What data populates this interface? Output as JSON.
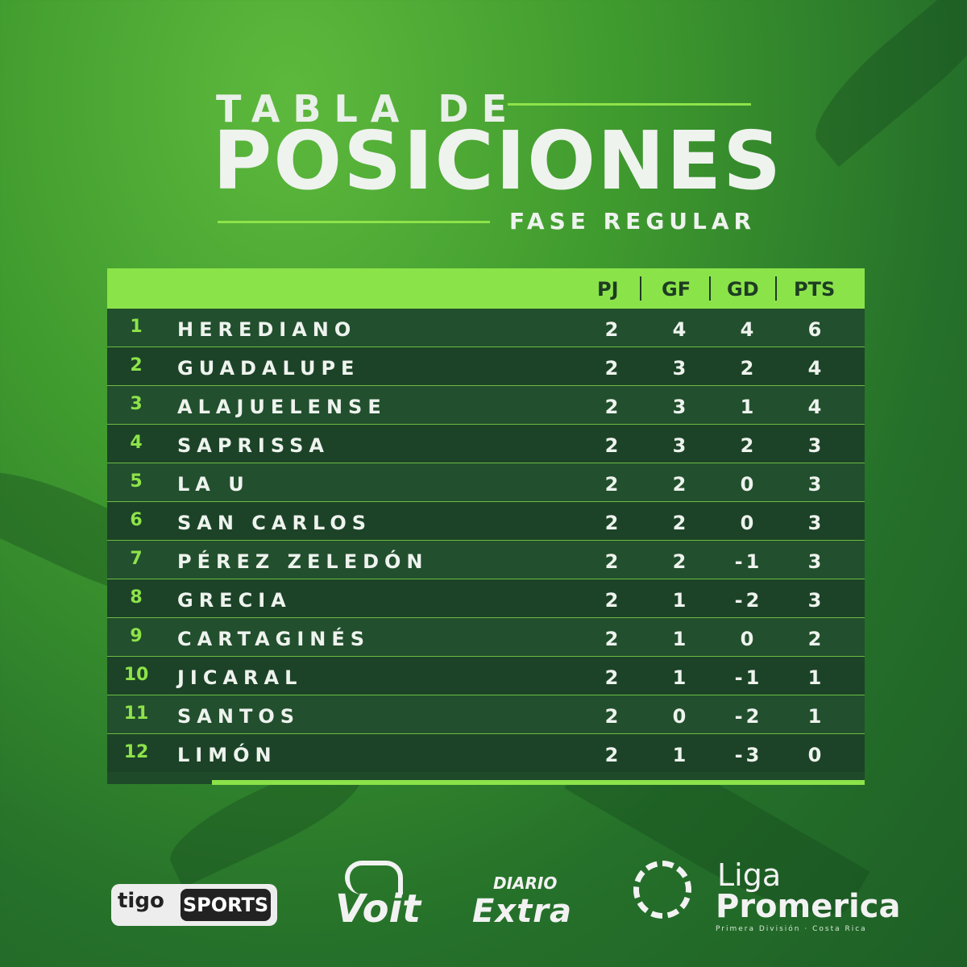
{
  "header": {
    "line1": "TABLA DE",
    "line2": "POSICIONES",
    "line3": "FASE REGULAR"
  },
  "table": {
    "columns": [
      "PJ",
      "GF",
      "GD",
      "PTS"
    ],
    "rows": [
      {
        "rank": "1",
        "team": "HEREDIANO",
        "pj": "2",
        "gf": "4",
        "gd": "4",
        "pts": "6"
      },
      {
        "rank": "2",
        "team": "GUADALUPE",
        "pj": "2",
        "gf": "3",
        "gd": "2",
        "pts": "4"
      },
      {
        "rank": "3",
        "team": "ALAJUELENSE",
        "pj": "2",
        "gf": "3",
        "gd": "1",
        "pts": "4"
      },
      {
        "rank": "4",
        "team": "SAPRISSA",
        "pj": "2",
        "gf": "3",
        "gd": "2",
        "pts": "3"
      },
      {
        "rank": "5",
        "team": "LA U",
        "pj": "2",
        "gf": "2",
        "gd": "0",
        "pts": "3"
      },
      {
        "rank": "6",
        "team": "SAN CARLOS",
        "pj": "2",
        "gf": "2",
        "gd": "0",
        "pts": "3"
      },
      {
        "rank": "7",
        "team": "PÉREZ ZELEDÓN",
        "pj": "2",
        "gf": "2",
        "gd": "-1",
        "pts": "3"
      },
      {
        "rank": "8",
        "team": "GRECIA",
        "pj": "2",
        "gf": "1",
        "gd": "-2",
        "pts": "3"
      },
      {
        "rank": "9",
        "team": "CARTAGINÉS",
        "pj": "2",
        "gf": "1",
        "gd": "0",
        "pts": "2"
      },
      {
        "rank": "10",
        "team": "JICARAL",
        "pj": "2",
        "gf": "1",
        "gd": "-1",
        "pts": "1"
      },
      {
        "rank": "11",
        "team": "SANTOS",
        "pj": "2",
        "gf": "0",
        "gd": "-2",
        "pts": "1"
      },
      {
        "rank": "12",
        "team": "LIMÓN",
        "pj": "2",
        "gf": "1",
        "gd": "-3",
        "pts": "0"
      }
    ]
  },
  "sponsors": {
    "tigo_a": "tigo",
    "tigo_b": "SPORTS",
    "voit": "Voit",
    "diario_a": "DIARIO",
    "diario_b": "Extra",
    "liga_a": "Liga",
    "liga_b": "Promerica",
    "liga_c": "Primera División · Costa Rica"
  }
}
